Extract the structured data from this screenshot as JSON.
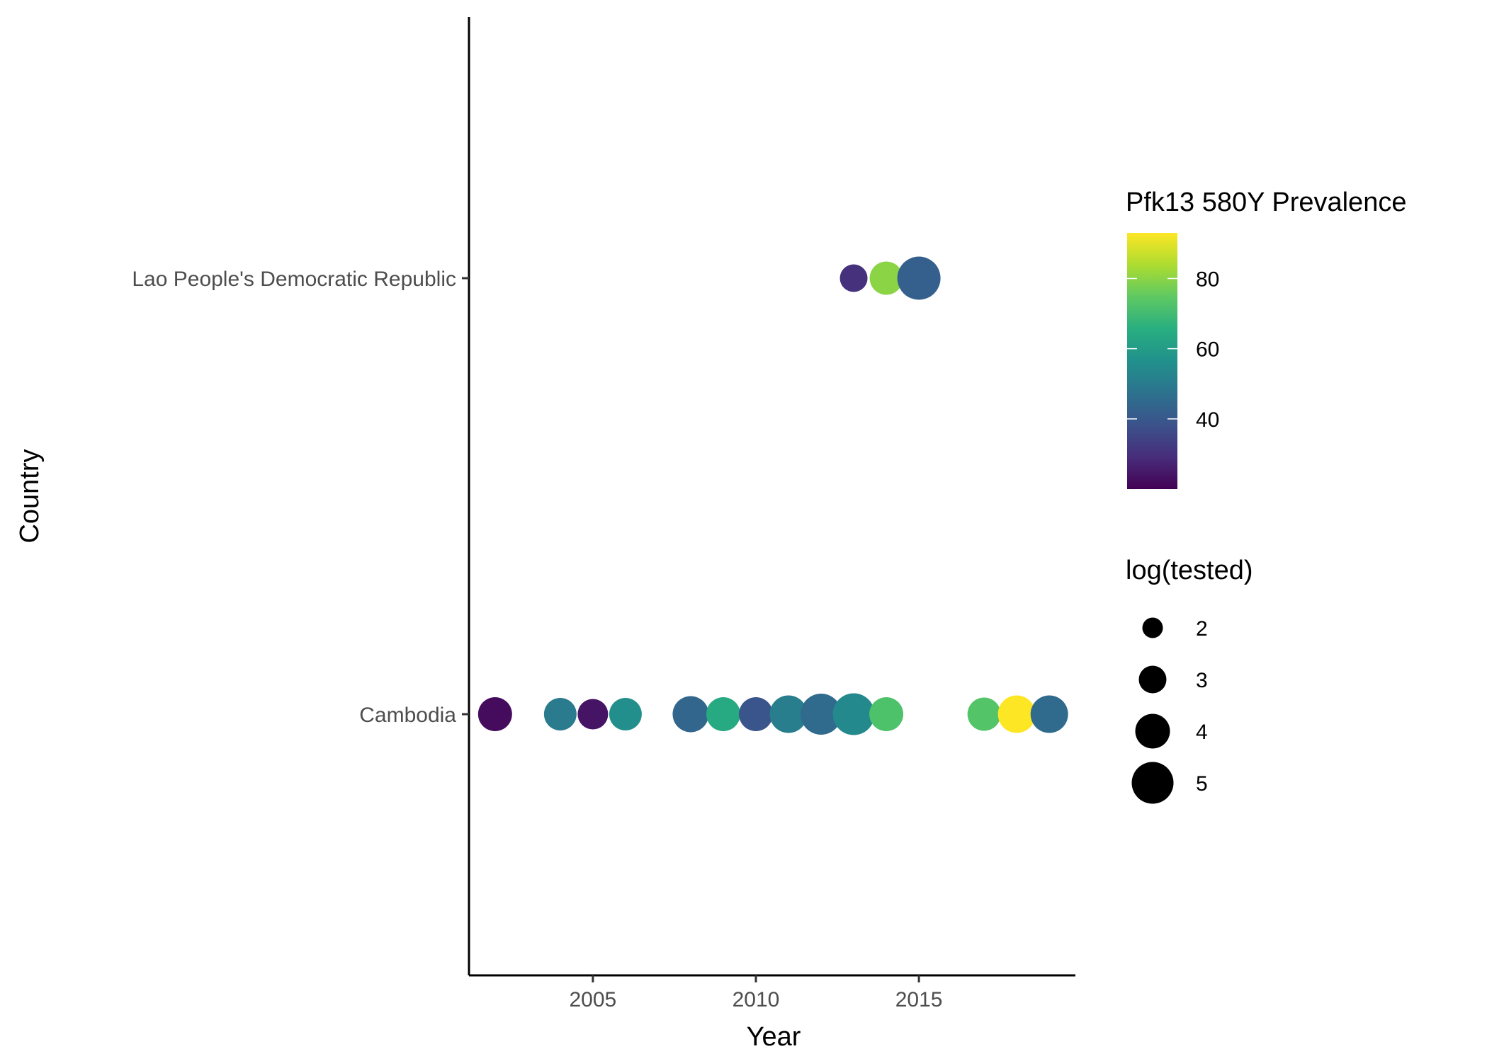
{
  "chart_data": {
    "type": "scatter",
    "xlabel": "Year",
    "ylabel": "Country",
    "xlim": [
      2001.2,
      2019.8
    ],
    "x_ticks": [
      2005,
      2010,
      2015
    ],
    "categories": [
      "Lao People's Democratic Republic",
      "Cambodia"
    ],
    "grid": false,
    "legend_position": "right",
    "series": [
      {
        "category": "Lao People's Democratic Republic",
        "points": [
          {
            "x": 2013,
            "prevalence": 30,
            "log_tested": 3.0
          },
          {
            "x": 2014,
            "prevalence": 80,
            "log_tested": 3.8
          },
          {
            "x": 2015,
            "prevalence": 42,
            "log_tested": 5.2
          }
        ]
      },
      {
        "category": "Cambodia",
        "points": [
          {
            "x": 2002,
            "prevalence": 22,
            "log_tested": 3.9
          },
          {
            "x": 2004,
            "prevalence": 50,
            "log_tested": 3.7
          },
          {
            "x": 2005,
            "prevalence": 24,
            "log_tested": 3.4
          },
          {
            "x": 2006,
            "prevalence": 56,
            "log_tested": 3.7
          },
          {
            "x": 2008,
            "prevalence": 44,
            "log_tested": 4.2
          },
          {
            "x": 2009,
            "prevalence": 64,
            "log_tested": 3.9
          },
          {
            "x": 2010,
            "prevalence": 39,
            "log_tested": 3.9
          },
          {
            "x": 2011,
            "prevalence": 51,
            "log_tested": 4.4
          },
          {
            "x": 2012,
            "prevalence": 45,
            "log_tested": 4.9
          },
          {
            "x": 2013,
            "prevalence": 54,
            "log_tested": 5.0
          },
          {
            "x": 2014,
            "prevalence": 72,
            "log_tested": 3.9
          },
          {
            "x": 2017,
            "prevalence": 73,
            "log_tested": 3.8
          },
          {
            "x": 2018,
            "prevalence": 94,
            "log_tested": 4.4
          },
          {
            "x": 2019,
            "prevalence": 45,
            "log_tested": 4.4
          }
        ]
      }
    ],
    "color_legend": {
      "title": "Pfk13 580Y Prevalence",
      "range": [
        20,
        93
      ],
      "ticks": [
        40,
        60,
        80
      ],
      "colormap": "viridis"
    },
    "size_legend": {
      "title": "log(tested)",
      "range": [
        1.5,
        5.5
      ],
      "values": [
        2,
        3,
        4,
        5
      ]
    }
  }
}
